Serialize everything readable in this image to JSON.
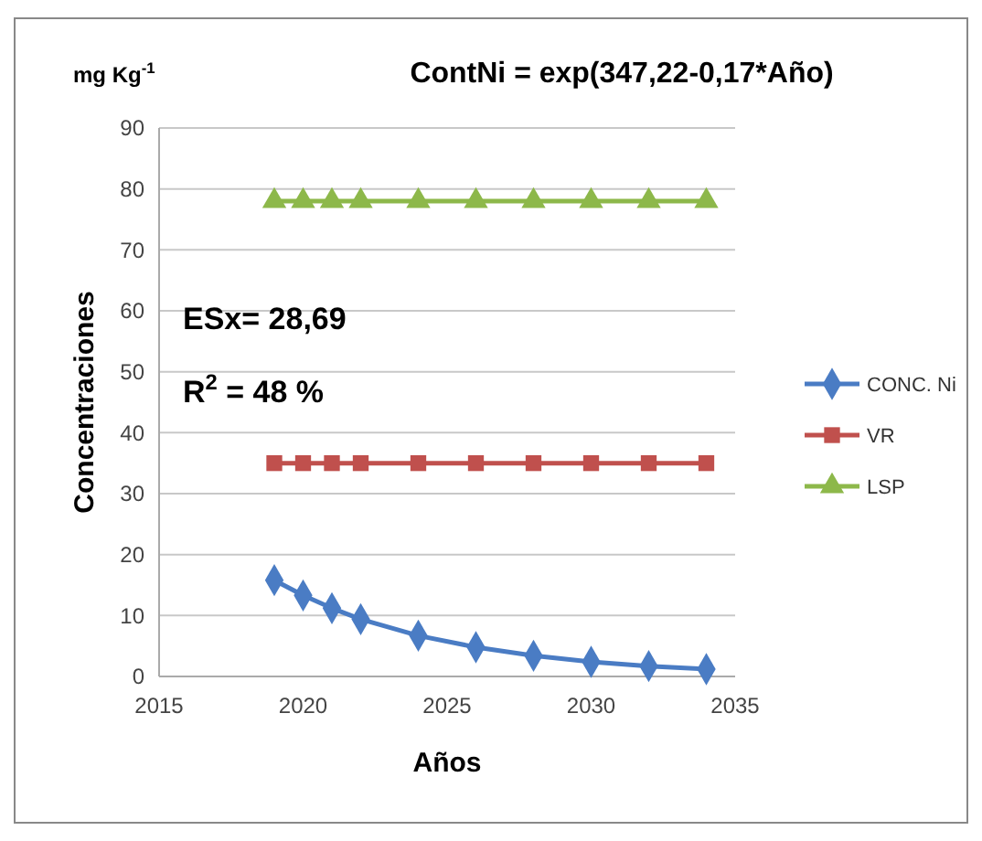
{
  "chart_data": {
    "type": "line",
    "title": "ContNi = exp(347,22-0,17*Año)",
    "xlabel": "Años",
    "ylabel": "Concentraciones",
    "annotations": [
      "mg Kg$^{-1}$",
      "ESx= 28,69",
      "R$^{2}$ = 48 %"
    ],
    "x": [
      2019,
      2020,
      2021,
      2022,
      2024,
      2026,
      2028,
      2030,
      2032,
      2034
    ],
    "series": [
      {
        "name": "CONC. Ni",
        "color": "#4a7cc4",
        "marker": "diamond",
        "values": [
          15.8,
          13.3,
          11.2,
          9.4,
          6.7,
          4.8,
          3.4,
          2.4,
          1.7,
          1.2
        ]
      },
      {
        "name": "VR",
        "color": "#c0504d",
        "marker": "square",
        "values": [
          35,
          35,
          35,
          35,
          35,
          35,
          35,
          35,
          35,
          35
        ]
      },
      {
        "name": "LSP",
        "color": "#8db84a",
        "marker": "triangle",
        "values": [
          78,
          78,
          78,
          78,
          78,
          78,
          78,
          78,
          78,
          78
        ]
      }
    ],
    "xlim": [
      2015,
      2035
    ],
    "xticks": [
      2015,
      2020,
      2025,
      2030,
      2035
    ],
    "ylim": [
      0,
      90
    ],
    "yticks": [
      0,
      10,
      20,
      30,
      40,
      50,
      60,
      70,
      80,
      90
    ],
    "grid": "y",
    "legend": "right"
  }
}
